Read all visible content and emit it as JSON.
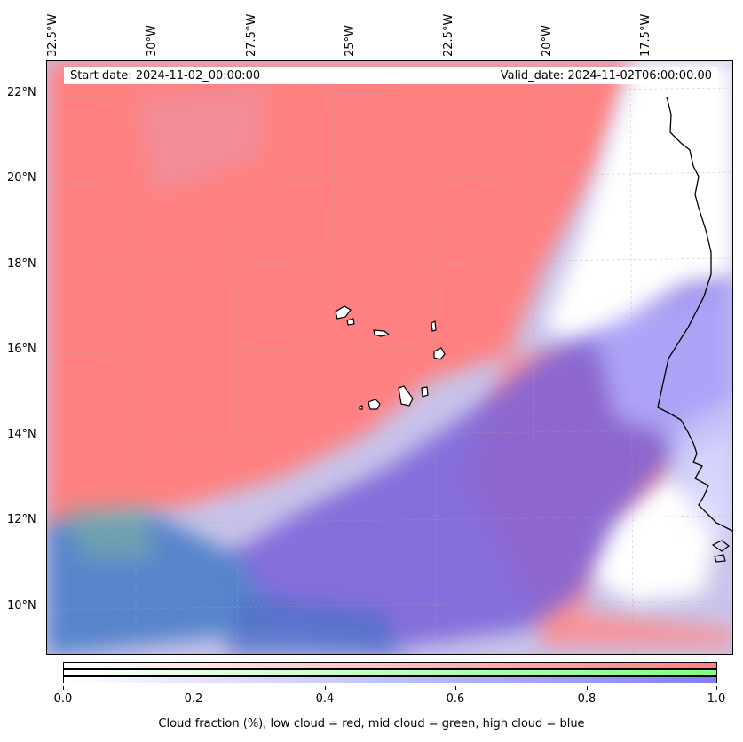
{
  "map": {
    "lon_labels": [
      "32.5°W",
      "30°W",
      "27.5°W",
      "25°W",
      "22.5°W",
      "20°W",
      "17.5°W"
    ],
    "lat_labels": [
      "22°N",
      "20°N",
      "18°N",
      "16°N",
      "14°N",
      "12°N",
      "10°N"
    ],
    "start_date": "Start date: 2024-11-02_00:00:00",
    "valid_date": "Valid_date: 2024-11-02T06:00:00.00",
    "layers": [
      {
        "name": "low cloud",
        "color": "#ff7f7f"
      },
      {
        "name": "mid cloud",
        "color": "#7fff7f"
      },
      {
        "name": "high cloud",
        "color": "#7f7fff"
      }
    ]
  },
  "colorbar": {
    "tick_labels": [
      "0.0",
      "0.2",
      "0.4",
      "0.6",
      "0.8",
      "1.0"
    ],
    "caption": "Cloud fraction (%), low cloud = red, mid cloud = green, high cloud = blue",
    "range": [
      0,
      1
    ],
    "colors": {
      "low": "#ff7f7f",
      "mid": "#7fff7f",
      "high": "#7f7fff"
    }
  }
}
